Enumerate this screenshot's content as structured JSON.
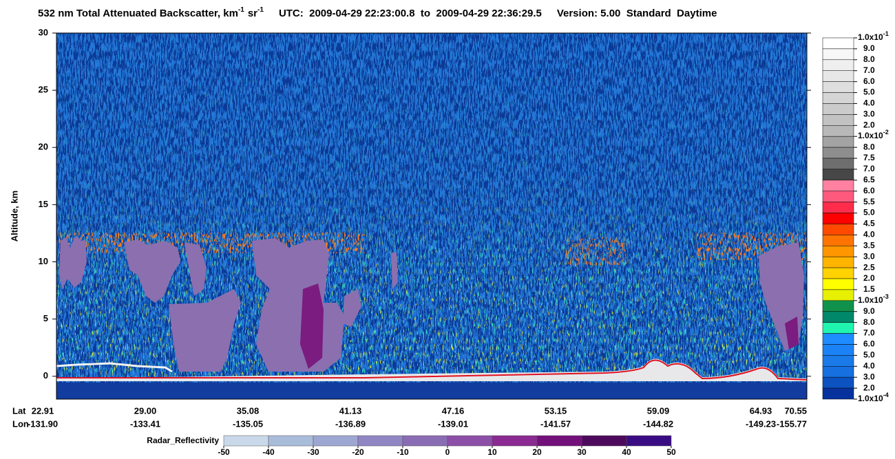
{
  "chart_data": {
    "type": "heatmap",
    "title": {
      "text": "532 nm Total Attenuated Backscatter, km",
      "unit_exp": "-1",
      "unit2": "sr",
      "unit2_exp": "-1",
      "time": "UTC:  2009-04-29 22:23:00.8  to  2009-04-29 22:36:29.5",
      "version": "Version: 5.00  Standard  Daytime"
    },
    "ylabel": "Altitude, km",
    "ylim": [
      -2,
      30
    ],
    "yticks": [
      0,
      5,
      10,
      15,
      20,
      25,
      30
    ],
    "x_row_labels": [
      "Lat",
      "Lon"
    ],
    "lat_labels": [
      "22.91",
      "29.00",
      "35.08",
      "41.13",
      "47.16",
      "53.15",
      "59.09",
      "64.93",
      "70.55"
    ],
    "lon_labels": [
      "-131.90",
      "-133.41",
      "-135.05",
      "-136.89",
      "-139.01",
      "-141.57",
      "-144.82",
      "-149.23",
      "-155.77"
    ],
    "colorbar": {
      "labels": [
        {
          "text": "1.0x10",
          "exp": "-1"
        },
        "9.0",
        "8.0",
        "7.0",
        "6.0",
        "5.0",
        "4.0",
        "3.0",
        "2.0",
        {
          "text": "1.0x10",
          "exp": "-2"
        },
        "8.0",
        "7.5",
        "7.0",
        "6.5",
        "6.0",
        "5.5",
        "5.0",
        "4.5",
        "4.0",
        "3.5",
        "3.0",
        "2.5",
        "2.0",
        "1.5",
        {
          "text": "1.0x10",
          "exp": "-3"
        },
        "9.0",
        "8.0",
        "7.0",
        "6.0",
        "5.0",
        "4.0",
        "3.0",
        "2.0",
        {
          "text": "1.0x10",
          "exp": "-4"
        }
      ],
      "colors": [
        "#ffffff",
        "#f7f7f7",
        "#efefef",
        "#e7e7e7",
        "#dedede",
        "#d5d5d5",
        "#cbcbcb",
        "#c2c2c2",
        "#b8b8b8",
        "#a3a3a3",
        "#8e8e8e",
        "#6e6e6e",
        "#474747",
        "#ff80a0",
        "#ff5a7e",
        "#ff2d4b",
        "#ff0000",
        "#ff4a00",
        "#ff7300",
        "#ff9600",
        "#ffb400",
        "#ffd200",
        "#ffff00",
        "#e6f000",
        "#11924c",
        "#00886a",
        "#20f5b0",
        "#1e8cff",
        "#1b82f5",
        "#1a7ae8",
        "#1670e0",
        "#0c52c0",
        "#07329e"
      ]
    },
    "radar_colorbar": {
      "label": "Radar_Reflectivity",
      "ticks": [
        -50,
        -40,
        -30,
        -20,
        -10,
        0,
        10,
        20,
        30,
        40,
        50
      ],
      "colors": [
        "#c9d9ea",
        "#a9bcd9",
        "#9ea6d2",
        "#9186c4",
        "#8a6cb4",
        "#8c4fa8",
        "#8a2a92",
        "#73107a",
        "#4d0a5c",
        "#3a0c84"
      ]
    }
  }
}
